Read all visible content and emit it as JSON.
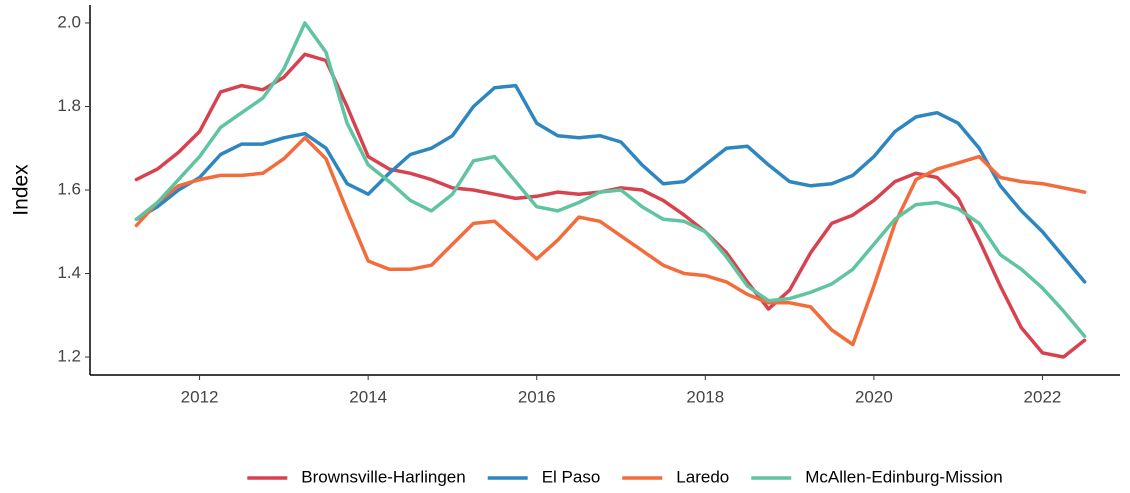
{
  "chart_data": {
    "type": "line",
    "y_label": "Index",
    "legend": "bottom",
    "grid": false,
    "x": [
      2011.25,
      2011.5,
      2011.75,
      2012,
      2012.25,
      2012.5,
      2012.75,
      2013,
      2013.25,
      2013.5,
      2013.75,
      2014,
      2014.25,
      2014.5,
      2014.75,
      2015,
      2015.25,
      2015.5,
      2015.75,
      2016,
      2016.25,
      2016.5,
      2016.75,
      2017,
      2017.25,
      2017.5,
      2017.75,
      2018,
      2018.25,
      2018.5,
      2018.75,
      2019,
      2019.25,
      2019.5,
      2019.75,
      2020,
      2020.25,
      2020.5,
      2020.75,
      2021,
      2021.25,
      2021.5,
      2021.75,
      2022,
      2022.25,
      2022.5
    ],
    "xlim": [
      2010.7,
      2022.92
    ],
    "xticks": [
      2012,
      2014,
      2016,
      2018,
      2020,
      2022
    ],
    "ylim": [
      1.157,
      2.043
    ],
    "yticks": [
      1.2,
      1.4,
      1.6,
      1.8,
      {
        "value": 2,
        "label": "2.0"
      }
    ],
    "series": [
      {
        "name": "Brownsville-Harlingen",
        "color": "#d7424f",
        "values": [
          1.625,
          1.65,
          1.69,
          1.74,
          1.835,
          1.85,
          1.84,
          1.87,
          1.925,
          1.91,
          1.8,
          1.68,
          1.65,
          1.64,
          1.625,
          1.605,
          1.6,
          1.59,
          1.58,
          1.585,
          1.595,
          1.59,
          1.595,
          1.605,
          1.6,
          1.575,
          1.54,
          1.5,
          1.45,
          1.38,
          1.315,
          1.36,
          1.45,
          1.52,
          1.54,
          1.575,
          1.62,
          1.64,
          1.63,
          1.58,
          1.48,
          1.37,
          1.27,
          1.21,
          1.2,
          1.24
        ]
      },
      {
        "name": "El Paso",
        "color": "#2e86c1",
        "values": [
          1.53,
          1.56,
          1.6,
          1.63,
          1.685,
          1.71,
          1.71,
          1.725,
          1.735,
          1.7,
          1.615,
          1.59,
          1.64,
          1.685,
          1.7,
          1.73,
          1.8,
          1.845,
          1.85,
          1.76,
          1.73,
          1.725,
          1.73,
          1.715,
          1.66,
          1.615,
          1.62,
          1.66,
          1.7,
          1.705,
          1.66,
          1.62,
          1.61,
          1.615,
          1.635,
          1.68,
          1.74,
          1.775,
          1.785,
          1.76,
          1.7,
          1.61,
          1.55,
          1.5,
          1.44,
          1.38
        ]
      },
      {
        "name": "Laredo",
        "color": "#f26c3c",
        "values": [
          1.515,
          1.57,
          1.61,
          1.625,
          1.635,
          1.635,
          1.64,
          1.675,
          1.725,
          1.675,
          1.55,
          1.43,
          1.41,
          1.41,
          1.42,
          1.47,
          1.52,
          1.525,
          1.48,
          1.435,
          1.48,
          1.535,
          1.525,
          1.49,
          1.455,
          1.42,
          1.4,
          1.395,
          1.38,
          1.35,
          1.33,
          1.33,
          1.32,
          1.265,
          1.23,
          1.37,
          1.52,
          1.625,
          1.65,
          1.665,
          1.68,
          1.63,
          1.62,
          1.615,
          1.605,
          1.595
        ]
      },
      {
        "name": "McAllen-Edinburg-Mission",
        "color": "#5fc4a0",
        "values": [
          1.53,
          1.57,
          1.625,
          1.68,
          1.75,
          1.785,
          1.82,
          1.89,
          2.0,
          1.93,
          1.76,
          1.66,
          1.62,
          1.575,
          1.55,
          1.59,
          1.67,
          1.68,
          1.62,
          1.56,
          1.55,
          1.57,
          1.595,
          1.6,
          1.56,
          1.53,
          1.525,
          1.5,
          1.44,
          1.37,
          1.335,
          1.34,
          1.355,
          1.375,
          1.41,
          1.47,
          1.53,
          1.565,
          1.57,
          1.555,
          1.52,
          1.445,
          1.41,
          1.365,
          1.31,
          1.25
        ]
      }
    ]
  }
}
